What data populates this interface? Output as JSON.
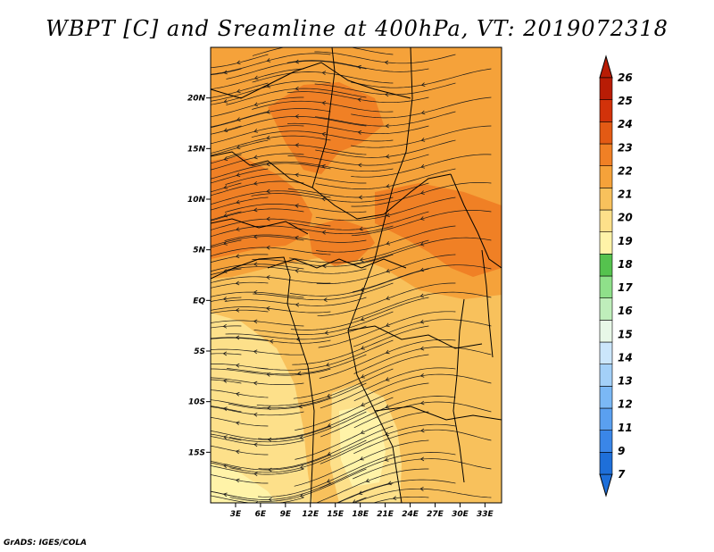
{
  "title": "WBPT [C] and Sreamline at 400hPa, VT: 2019072318",
  "credit": "GrADS: IGES/COLA",
  "map": {
    "lon_range": [
      0,
      35
    ],
    "lat_range": [
      -20,
      25
    ],
    "y_ticks": [
      {
        "lat": 20,
        "label": "20N"
      },
      {
        "lat": 15,
        "label": "15N"
      },
      {
        "lat": 10,
        "label": "10N"
      },
      {
        "lat": 5,
        "label": "5N"
      },
      {
        "lat": 0,
        "label": "EQ"
      },
      {
        "lat": -5,
        "label": "5S"
      },
      {
        "lat": -10,
        "label": "10S"
      },
      {
        "lat": -15,
        "label": "15S"
      }
    ],
    "x_ticks": [
      {
        "lon": 3,
        "label": "3E"
      },
      {
        "lon": 6,
        "label": "6E"
      },
      {
        "lon": 9,
        "label": "9E"
      },
      {
        "lon": 12,
        "label": "12E"
      },
      {
        "lon": 15,
        "label": "15E"
      },
      {
        "lon": 18,
        "label": "18E"
      },
      {
        "lon": 21,
        "label": "21E"
      },
      {
        "lon": 24,
        "label": "24E"
      },
      {
        "lon": 27,
        "label": "27E"
      },
      {
        "lon": 30,
        "label": "30E"
      },
      {
        "lon": 33,
        "label": "33E"
      }
    ]
  },
  "colorbar": {
    "labels": [
      "7",
      "9",
      "11",
      "12",
      "13",
      "14",
      "15",
      "16",
      "17",
      "18",
      "19",
      "20",
      "21",
      "22",
      "23",
      "24",
      "25",
      "26"
    ],
    "colors": [
      "#1e6fd9",
      "#3a86e8",
      "#5aa0f0",
      "#7bb8f5",
      "#a3d0f8",
      "#cbe6fb",
      "#e8f8e8",
      "#bfeebb",
      "#8fe08a",
      "#55c24e",
      "#fff3a8",
      "#fde08a",
      "#f8c15c",
      "#f5a23a",
      "#f08025",
      "#e35a14",
      "#d2320a",
      "#b81c05"
    ],
    "low_arrow_color": "#1e6fd9",
    "high_arrow_color": "#b81c05"
  },
  "field_colors": {
    "c19": "#fff3a8",
    "c20": "#fde08a",
    "c21": "#f8c15c",
    "c22": "#f5a23a",
    "c23": "#f08025"
  }
}
